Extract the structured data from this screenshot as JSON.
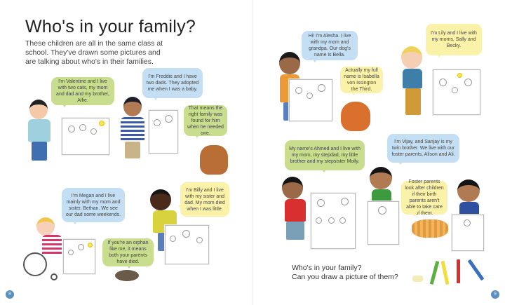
{
  "left_page": {
    "title": "Who's in your family?",
    "intro": "These children are all in the same class at school. They've drawn some pictures and are talking about who's in their families.",
    "bubbles": {
      "valentine": "I'm Valentine and I live with two cats, my mom and dad and my brother, Alfie.",
      "freddie": "I'm Freddie and I have two dads. They adopted me when I was a baby.",
      "dog": "That means the right family was found for him when he needed one.",
      "megan": "I'm Megan and I live mainly with my mom and sister, Bethan. We see our dad some weekends.",
      "billy": "I'm Billy and I live with my sister and dad. My mom died when I was little.",
      "hedgehog": "If you're an orphan like me, it means both your parents have died."
    },
    "page_number": "8"
  },
  "right_page": {
    "bubbles": {
      "alesha": "Hi! I'm Alesha. I live with my mom and grandpa. Our dog's name is Bella.",
      "bella": "Actually my full name is Isabella von Issington the Third.",
      "lily": "I'm Lily and I live with my moms, Sally and Becky.",
      "ahmed": "My name's Ahmed and I live with my mom, my stepdad, my little brother and my stepsister Molly.",
      "vijay": "I'm Vijay, and Sanjay is my twin brother. We live with our foster parents, Alison and Ali.",
      "cat": "Foster parents look after children if their birth parents aren't able to take care of them."
    },
    "question_line1": "Who's in your family?",
    "question_line2": "Can you draw a picture of them?",
    "page_number": "9"
  },
  "colors": {
    "green_bubble": "#c9dd8e",
    "blue_bubble": "#c4dff3",
    "yellow_bubble": "#fbf2a9",
    "page_number": "#5b8fc0"
  }
}
